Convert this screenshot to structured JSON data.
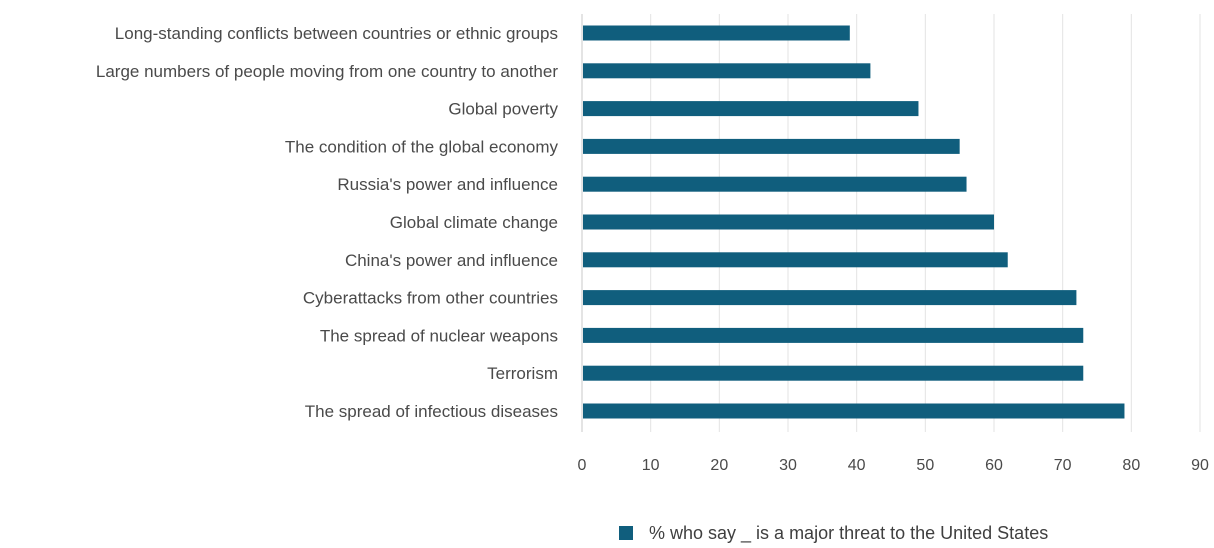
{
  "chart_data": {
    "type": "bar",
    "orientation": "horizontal",
    "categories": [
      "Long-standing conflicts between countries or ethnic groups",
      "Large numbers of people moving from one country to another",
      "Global poverty",
      "The condition of the global economy",
      "Russia's power and influence",
      "Global climate change",
      "China's power and influence",
      "Cyberattacks from other countries",
      "The spread of nuclear weapons",
      "Terrorism",
      "The spread of infectious diseases"
    ],
    "series": [
      {
        "name": "% who say _ is a major threat to the United States",
        "values": [
          39,
          42,
          49,
          55,
          56,
          60,
          62,
          72,
          73,
          73,
          79
        ],
        "color": "#105e7d"
      }
    ],
    "xlim": [
      0,
      90
    ],
    "xticks": [
      "0",
      "10",
      "20",
      "30",
      "40",
      "50",
      "60",
      "70",
      "80",
      "90"
    ],
    "grid": true,
    "legend_position": "bottom"
  },
  "colors": {
    "bar": "#105e7d",
    "grid": "#e3e3e3",
    "axis": "#c8c8c8"
  }
}
